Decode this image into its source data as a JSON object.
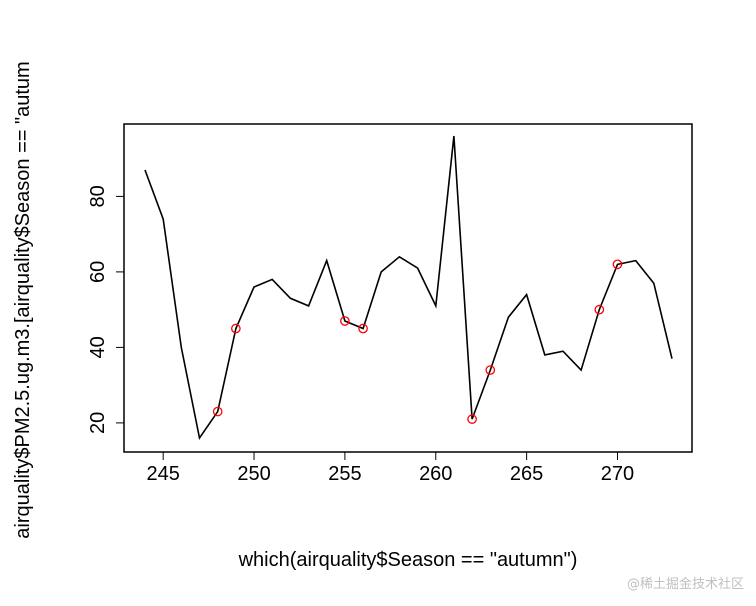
{
  "chart_data": {
    "type": "line",
    "title": "",
    "xlabel": "which(airquality$Season == \"autumn\")",
    "ylabel": "airquality$PM2.5.ug.m3.[airquality$Season == \"autum",
    "xlim": [
      244,
      273
    ],
    "ylim": [
      16,
      96
    ],
    "x_ticks": [
      245,
      250,
      255,
      260,
      265,
      270
    ],
    "y_ticks": [
      20,
      40,
      60,
      80
    ],
    "grid": false,
    "series": [
      {
        "x": [
          244,
          245,
          246,
          247,
          248,
          249,
          250,
          251,
          252,
          253,
          254,
          255,
          256,
          257,
          258,
          259,
          260,
          261,
          262,
          263,
          264,
          265,
          266,
          267,
          268,
          269,
          270,
          271,
          272,
          273
        ],
        "values": [
          87,
          74,
          40,
          16,
          23,
          45,
          56,
          58,
          53,
          51,
          63,
          47,
          45,
          60,
          64,
          61,
          51,
          96,
          21,
          34,
          48,
          54,
          38,
          39,
          34,
          50,
          62,
          63,
          57,
          37
        ],
        "color": "#000000"
      }
    ],
    "highlighted_points": {
      "x": [
        248,
        249,
        255,
        256,
        262,
        263,
        269,
        270
      ],
      "y": [
        23,
        45,
        47,
        45,
        21,
        34,
        50,
        62
      ],
      "color": "#ff0000"
    }
  },
  "watermark": "@稀土掘金技术社区"
}
